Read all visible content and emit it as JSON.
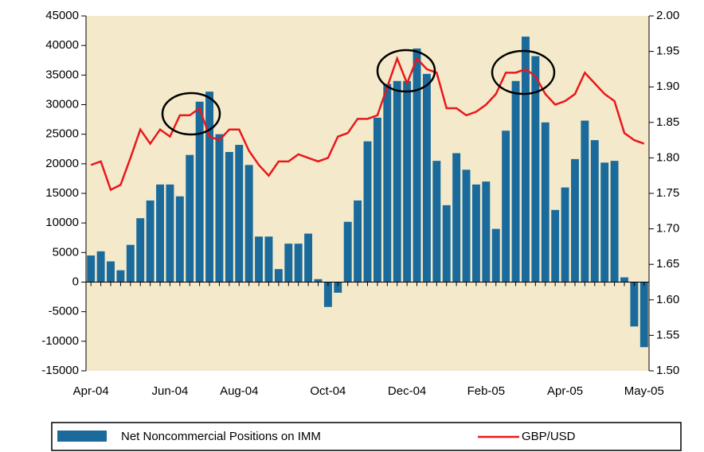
{
  "chart_data": {
    "type": "bar-line",
    "categories": [
      "Apr-04",
      null,
      null,
      null,
      null,
      null,
      null,
      null,
      "Jun-04",
      null,
      null,
      null,
      null,
      null,
      null,
      "Aug-04",
      null,
      null,
      null,
      null,
      null,
      null,
      null,
      null,
      "Oct-04",
      null,
      null,
      null,
      null,
      null,
      null,
      null,
      "Dec-04",
      null,
      null,
      null,
      null,
      null,
      null,
      null,
      "Feb-05",
      null,
      null,
      null,
      null,
      null,
      null,
      null,
      "Apr-05",
      null,
      null,
      null,
      null,
      null,
      null,
      null,
      "May-05"
    ],
    "series": [
      {
        "name": "Net Noncommercial Positions on IMM",
        "type": "bar",
        "color": "#1a6b9c",
        "axis": "y",
        "values": [
          4500,
          5200,
          3500,
          2000,
          6300,
          10800,
          13800,
          16500,
          16500,
          14500,
          21500,
          30500,
          32200,
          25000,
          22000,
          23200,
          19800,
          7700,
          7700,
          2200,
          6500,
          6500,
          8200,
          500,
          -4200,
          -1800,
          10200,
          13800,
          23800,
          27800,
          33500,
          34000,
          34000,
          39500,
          35200,
          20500,
          13000,
          21800,
          19000,
          16500,
          17000,
          9000,
          25600,
          34000,
          41500,
          38200,
          27000,
          12200,
          16000,
          20800,
          27300,
          24000,
          20200,
          20500,
          800,
          -7500,
          -11000
        ]
      },
      {
        "name": "GBP/USD",
        "type": "line",
        "color": "#e8181c",
        "axis": "y2",
        "values": [
          1.79,
          1.795,
          1.755,
          1.762,
          1.8,
          1.84,
          1.82,
          1.84,
          1.83,
          1.86,
          1.86,
          1.87,
          1.83,
          1.825,
          1.84,
          1.84,
          1.81,
          1.79,
          1.775,
          1.795,
          1.795,
          1.805,
          1.8,
          1.795,
          1.8,
          1.83,
          1.835,
          1.855,
          1.855,
          1.86,
          1.9,
          1.94,
          1.905,
          1.94,
          1.925,
          1.92,
          1.87,
          1.87,
          1.86,
          1.865,
          1.875,
          1.89,
          1.92,
          1.92,
          1.925,
          1.915,
          1.89,
          1.875,
          1.88,
          1.89,
          1.92,
          1.905,
          1.89,
          1.88,
          1.835,
          1.825,
          1.82
        ]
      }
    ],
    "ylim": [
      -15000,
      45000
    ],
    "yticks": [
      -15000,
      -10000,
      -5000,
      0,
      5000,
      10000,
      15000,
      20000,
      25000,
      30000,
      35000,
      40000,
      45000
    ],
    "y2lim": [
      1.5,
      2.0
    ],
    "y2ticks": [
      {
        "value": 1.5,
        "label": "1.50"
      },
      1.55,
      {
        "value": 1.6,
        "label": "1.60"
      },
      1.65,
      {
        "value": 1.7,
        "label": "1.70"
      },
      1.75,
      {
        "value": 1.8,
        "label": "1.80"
      },
      1.85,
      {
        "value": 1.9,
        "label": "1.90"
      },
      1.95,
      {
        "value": 2.0,
        "label": "2.00"
      }
    ],
    "plot_background": "#f4eacb"
  }
}
